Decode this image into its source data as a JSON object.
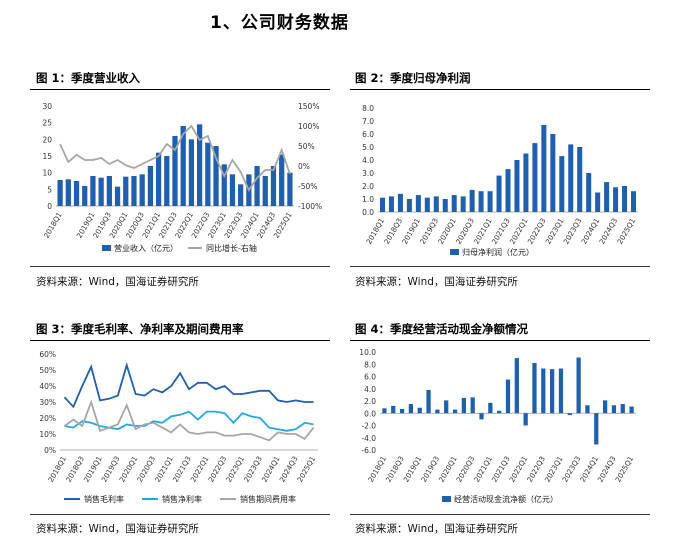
{
  "section_title": "1、公司财务数据",
  "source_text": "资料来源：Wind，国海证券研究所",
  "colors": {
    "blue": "#1f5fad",
    "gray": "#a6a6a6",
    "cyan": "#1fa9e0",
    "darkblue": "#1f5fad"
  },
  "chart_data": [
    {
      "type": "bar+line",
      "title": "图 1：季度营业收入",
      "categories": [
        "2018Q1",
        "2018Q2",
        "2018Q3",
        "2018Q4",
        "2019Q1",
        "2019Q2",
        "2019Q3",
        "2019Q4",
        "2020Q1",
        "2020Q2",
        "2020Q3",
        "2020Q4",
        "2021Q1",
        "2021Q2",
        "2021Q3",
        "2021Q4",
        "2022Q1",
        "2022Q2",
        "2022Q3",
        "2022Q4",
        "2023Q1",
        "2023Q2",
        "2023Q3",
        "2023Q4",
        "2024Q1",
        "2024Q2",
        "2024Q3",
        "2024Q4",
        "2025Q1"
      ],
      "x_tick_labels": [
        "2018Q1",
        "2019Q1",
        "2019Q3",
        "2020Q1",
        "2020Q3",
        "2021Q1",
        "2021Q3",
        "2022Q1",
        "2022Q3",
        "2023Q1",
        "2023Q3",
        "2024Q1",
        "2024Q3",
        "2025Q1"
      ],
      "series": [
        {
          "name": "营业收入（亿元）",
          "axis": "left",
          "kind": "bar",
          "values": [
            7.8,
            8,
            7.5,
            6,
            9,
            8.5,
            9,
            5.8,
            8.8,
            9,
            9.5,
            12,
            16,
            15,
            21,
            24,
            20,
            24.5,
            19,
            18,
            12.5,
            9.5,
            6.5,
            9.5,
            12,
            9,
            12,
            15.5,
            10
          ]
        },
        {
          "name": "同比增长-右轴",
          "axis": "right",
          "kind": "line",
          "values": [
            55,
            10,
            28,
            15,
            15,
            20,
            5,
            15,
            2,
            -5,
            5,
            15,
            25,
            55,
            40,
            80,
            100,
            65,
            75,
            20,
            -25,
            15,
            -15,
            -60,
            -30,
            -10,
            -10,
            40,
            -20
          ]
        }
      ],
      "y_left": {
        "min": 0,
        "max": 30,
        "ticks": [
          0,
          5,
          10,
          15,
          20,
          25,
          30
        ],
        "labels": [
          "0",
          "5",
          "10",
          "15",
          "20",
          "25",
          "30"
        ]
      },
      "y_right": {
        "min": -100,
        "max": 150,
        "ticks": [
          -100,
          -50,
          0,
          50,
          100,
          150
        ],
        "labels": [
          "-100%",
          "-50%",
          "0%",
          "50%",
          "100%",
          "150%"
        ]
      }
    },
    {
      "type": "bar",
      "title": "图 2：季度归母净利润",
      "categories": [
        "2018Q1",
        "2018Q2",
        "2018Q3",
        "2018Q4",
        "2019Q1",
        "2019Q2",
        "2019Q3",
        "2019Q4",
        "2020Q1",
        "2020Q2",
        "2020Q3",
        "2020Q4",
        "2021Q1",
        "2021Q2",
        "2021Q3",
        "2021Q4",
        "2022Q1",
        "2022Q2",
        "2022Q3",
        "2022Q4",
        "2023Q1",
        "2023Q2",
        "2023Q3",
        "2023Q4",
        "2024Q1",
        "2024Q2",
        "2024Q3",
        "2024Q4",
        "2025Q1"
      ],
      "x_tick_labels": [
        "2018Q1",
        "2018Q3",
        "2019Q1",
        "2019Q3",
        "2020Q1",
        "2020Q3",
        "2021Q1",
        "2021Q3",
        "2022Q1",
        "2022Q3",
        "2023Q1",
        "2023Q3",
        "2024Q1",
        "2024Q3",
        "2025Q1"
      ],
      "series": [
        {
          "name": "归母净利润（亿元）",
          "values": [
            1.1,
            1.2,
            1.4,
            1.0,
            1.3,
            1.1,
            1.2,
            1.0,
            1.3,
            1.2,
            1.7,
            1.6,
            1.6,
            2.8,
            3.3,
            4.0,
            4.5,
            5.3,
            6.7,
            6.0,
            4.3,
            5.2,
            5.0,
            3.0,
            1.5,
            2.3,
            1.9,
            2.0,
            1.6
          ]
        }
      ],
      "y": {
        "min": 0,
        "max": 8,
        "ticks": [
          0,
          1,
          2,
          3,
          4,
          5,
          6,
          7,
          8
        ],
        "labels": [
          "0.0",
          "1.0",
          "2.0",
          "3.0",
          "4.0",
          "5.0",
          "6.0",
          "7.0",
          "8.0"
        ]
      }
    },
    {
      "type": "line",
      "title": "图 3：季度毛利率、净利率及期间费用率",
      "categories": [
        "2018Q1",
        "2018Q2",
        "2018Q3",
        "2018Q4",
        "2019Q1",
        "2019Q2",
        "2019Q3",
        "2019Q4",
        "2020Q1",
        "2020Q2",
        "2020Q3",
        "2020Q4",
        "2021Q1",
        "2021Q2",
        "2021Q3",
        "2021Q4",
        "2022Q1",
        "2022Q2",
        "2022Q3",
        "2022Q4",
        "2023Q1",
        "2023Q2",
        "2023Q3",
        "2023Q4",
        "2024Q1",
        "2024Q2",
        "2024Q3",
        "2024Q4",
        "2025Q1"
      ],
      "x_tick_labels": [
        "2018Q1",
        "2018Q3",
        "2019Q1",
        "2019Q3",
        "2020Q1",
        "2020Q3",
        "2021Q1",
        "2021Q3",
        "2022Q1",
        "2022Q3",
        "2023Q1",
        "2023Q3",
        "2024Q1",
        "2024Q3",
        "2025Q1"
      ],
      "series": [
        {
          "name": "销售毛利率",
          "values": [
            33,
            27,
            40,
            52,
            31,
            32,
            34,
            53,
            35,
            34,
            38,
            36,
            40,
            48,
            38,
            42,
            42,
            38,
            40,
            35,
            35,
            36,
            37,
            37,
            31,
            30,
            31,
            30,
            30
          ]
        },
        {
          "name": "销售净利率",
          "values": [
            15,
            14,
            18,
            17,
            15,
            14,
            13,
            16,
            15,
            15,
            18,
            17,
            21,
            22,
            24,
            19,
            24,
            24,
            23,
            17,
            23,
            21,
            20,
            14,
            13,
            12,
            13,
            17,
            16
          ]
        },
        {
          "name": "销售期间费用率",
          "values": [
            15,
            19,
            15,
            30,
            12,
            14,
            16,
            28,
            13,
            16,
            17,
            14,
            11,
            16,
            11,
            10,
            11,
            11,
            9,
            9,
            10,
            10,
            8,
            6,
            11,
            10,
            10,
            7,
            14
          ]
        }
      ],
      "y": {
        "min": 0,
        "max": 60,
        "ticks": [
          0,
          10,
          20,
          30,
          40,
          50,
          60
        ],
        "labels": [
          "0%",
          "10%",
          "20%",
          "30%",
          "40%",
          "50%",
          "60%"
        ]
      }
    },
    {
      "type": "bar",
      "title": "图 4：季度经营活动现金净额情况",
      "categories": [
        "2018Q1",
        "2018Q2",
        "2018Q3",
        "2018Q4",
        "2019Q1",
        "2019Q2",
        "2019Q3",
        "2019Q4",
        "2020Q1",
        "2020Q2",
        "2020Q3",
        "2020Q4",
        "2021Q1",
        "2021Q2",
        "2021Q3",
        "2021Q4",
        "2022Q1",
        "2022Q2",
        "2022Q3",
        "2022Q4",
        "2023Q1",
        "2023Q2",
        "2023Q3",
        "2023Q4",
        "2024Q1",
        "2024Q2",
        "2024Q3",
        "2024Q4",
        "2025Q1"
      ],
      "x_tick_labels": [
        "2018Q1",
        "2018Q3",
        "2019Q1",
        "2019Q3",
        "2020Q1",
        "2020Q3",
        "2021Q1",
        "2021Q3",
        "2022Q1",
        "2022Q3",
        "2023Q1",
        "2023Q3",
        "2024Q1",
        "2024Q3",
        "2025Q1"
      ],
      "series": [
        {
          "name": "经营活动现金流净额（亿元）",
          "values": [
            0.8,
            1.2,
            0.7,
            1.5,
            0.9,
            3.8,
            0.6,
            2.1,
            0.6,
            2.5,
            2.6,
            -1.0,
            1.7,
            0.4,
            5.5,
            9.0,
            -2.0,
            8.2,
            7.3,
            7.2,
            7.3,
            -0.3,
            9.1,
            1.3,
            -5.1,
            2.1,
            1.3,
            1.5,
            1.1
          ]
        }
      ],
      "y": {
        "min": -6,
        "max": 10,
        "ticks": [
          -6,
          -4,
          -2,
          0,
          2,
          4,
          6,
          8,
          10
        ],
        "labels": [
          "-6.0",
          "-4.0",
          "-2.0",
          "0.0",
          "2.0",
          "4.0",
          "6.0",
          "8.0",
          "10.0"
        ]
      }
    }
  ]
}
